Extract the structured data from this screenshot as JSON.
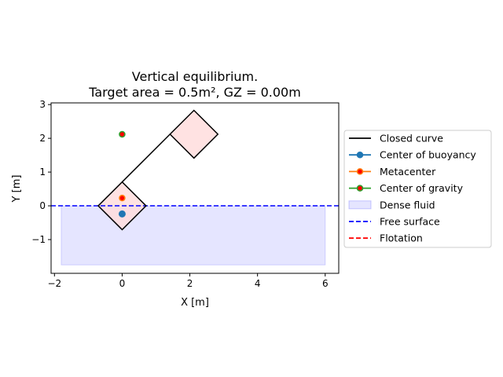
{
  "chart_data": {
    "type": "line",
    "title_line1": "Vertical equilibrium.",
    "title_line2": "Target area = 0.5m², GZ = 0.00m",
    "xlabel": "X [m]",
    "ylabel": "Y [m]",
    "xlim": [
      -2.1,
      6.4
    ],
    "ylim": [
      -2.0,
      3.05
    ],
    "xticks": [
      -2,
      0,
      2,
      4,
      6
    ],
    "yticks": [
      -1,
      0,
      1,
      2,
      3
    ],
    "xtick_labels": [
      "−2",
      "0",
      "2",
      "4",
      "6"
    ],
    "ytick_labels": [
      "−1",
      "0",
      "1",
      "2",
      "3"
    ],
    "grid": false,
    "legend_position": "right-outside",
    "dense_fluid": {
      "x_min": -1.8,
      "x_max": 6.0,
      "y_min": -1.75,
      "y_max": 0.0,
      "color": "#0000ff",
      "alpha": 0.1
    },
    "free_surface_y": 0.0,
    "shapes": [
      {
        "name": "submerged-diamond",
        "points": [
          [
            0,
            -0.7071
          ],
          [
            0.7071,
            0
          ],
          [
            0,
            0.7071
          ],
          [
            -0.7071,
            0
          ]
        ],
        "fill": "#ffdddd"
      },
      {
        "name": "upper-diamond",
        "points": [
          [
            2.1213,
            1.4142
          ],
          [
            2.8284,
            2.1213
          ],
          [
            2.1213,
            2.8284
          ],
          [
            1.4142,
            2.1213
          ]
        ],
        "fill": "#ffdddd"
      }
    ],
    "connector": [
      [
        0,
        0.7071
      ],
      [
        1.4142,
        2.1213
      ]
    ],
    "points": {
      "center_of_buoyancy": [
        0.0,
        -0.24
      ],
      "metacenter": [
        0.0,
        0.23
      ],
      "center_of_gravity": [
        0.0,
        2.12
      ]
    },
    "legend": [
      {
        "label": "Closed curve",
        "kind": "line",
        "color": "#000000",
        "dash": "none"
      },
      {
        "label": "Center of buoyancy",
        "kind": "line-marker",
        "color": "#1f77b4",
        "marker_face": "#1f77b4"
      },
      {
        "label": "Metacenter",
        "kind": "line-marker",
        "color": "#ff7f0e",
        "marker_face": "#ff0000"
      },
      {
        "label": "Center of gravity",
        "kind": "line-marker",
        "color": "#2ca02c",
        "marker_face": "#ff0000"
      },
      {
        "label": "Dense fluid",
        "kind": "patch",
        "color": "#0000ff"
      },
      {
        "label": "Free surface",
        "kind": "line",
        "color": "#0000ff",
        "dash": "6,3"
      },
      {
        "label": "Flotation",
        "kind": "line",
        "color": "#ff0000",
        "dash": "6,3"
      }
    ]
  }
}
